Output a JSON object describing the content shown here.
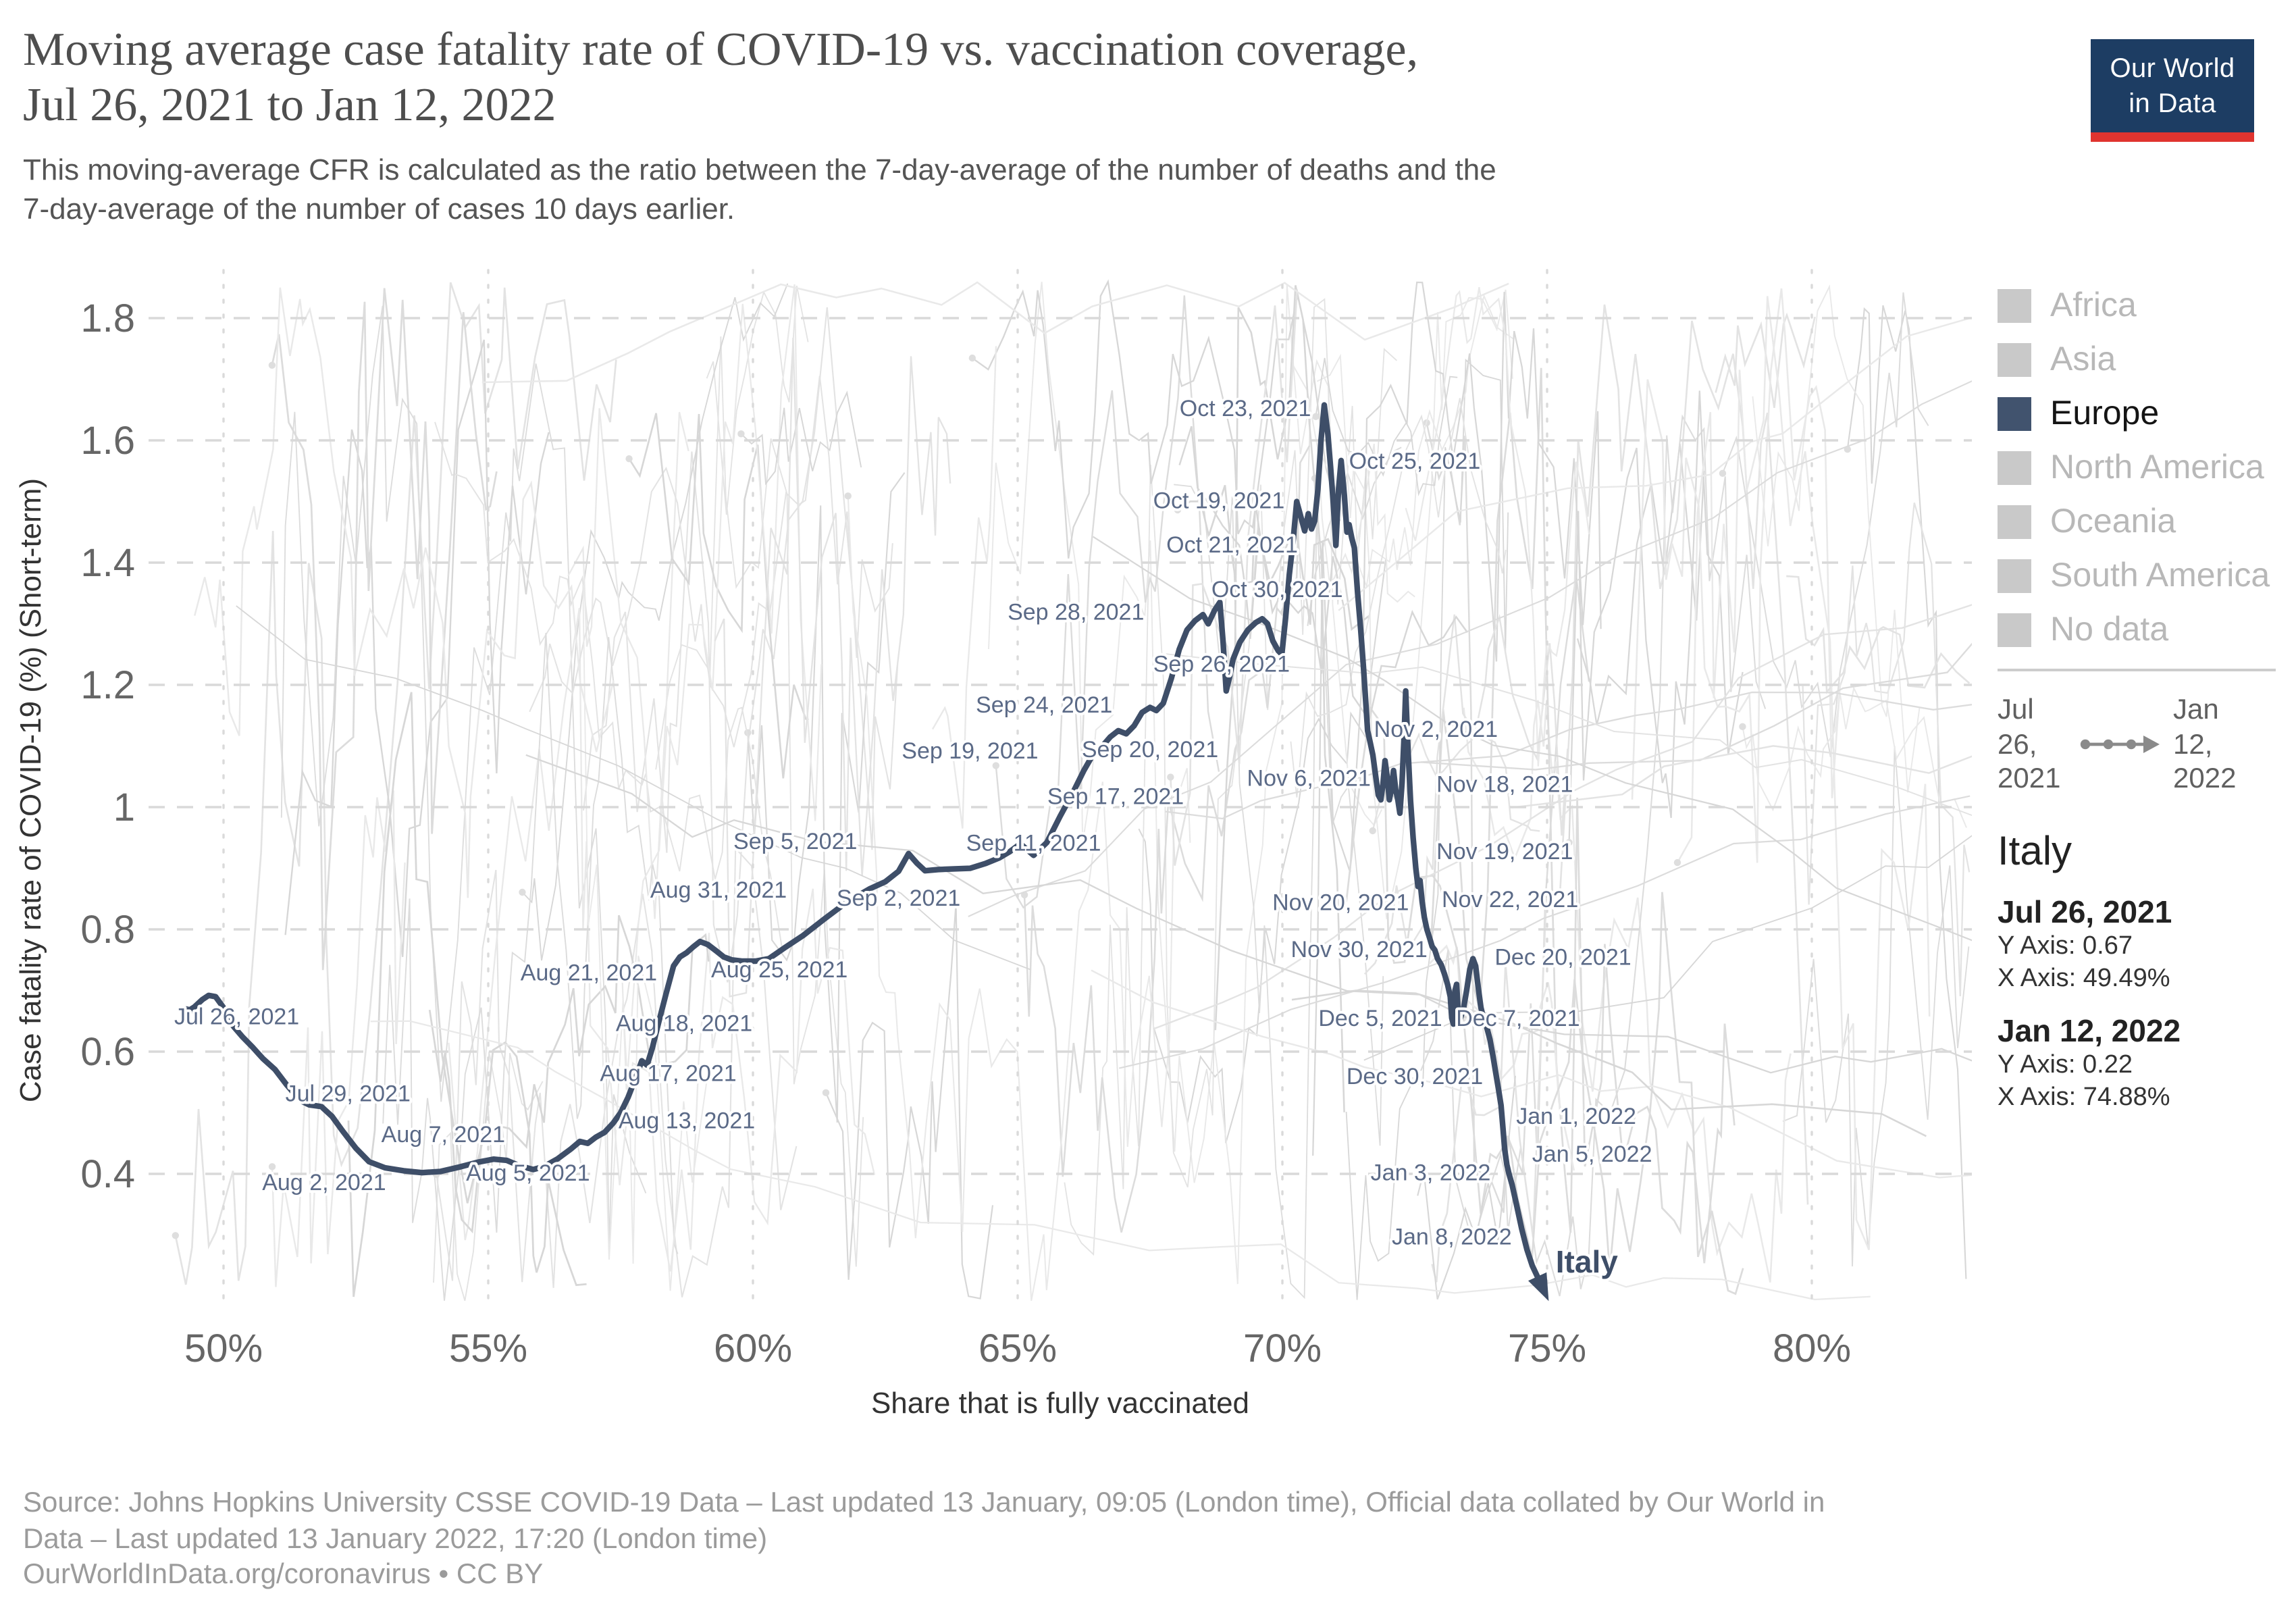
{
  "header": {
    "title_line1": "Moving average case fatality rate of COVID-19 vs. vaccination coverage,",
    "title_line2": "Jul 26, 2021 to Jan 12, 2022",
    "subtitle_line1": "This moving-average CFR is calculated as the ratio between the 7-day-average of the number of deaths and the",
    "subtitle_line2": "7-day-average of the number of cases 10 days earlier."
  },
  "logo": {
    "line1": "Our World",
    "line2": "in Data",
    "bg_color": "#1d3d63",
    "accent_color": "#e0342f"
  },
  "legend": {
    "items": [
      {
        "label": "Africa",
        "color": "#c9c9c9",
        "active": false
      },
      {
        "label": "Asia",
        "color": "#c9c9c9",
        "active": false
      },
      {
        "label": "Europe",
        "color": "#41536e",
        "active": true
      },
      {
        "label": "North America",
        "color": "#c9c9c9",
        "active": false
      },
      {
        "label": "Oceania",
        "color": "#c9c9c9",
        "active": false
      },
      {
        "label": "South America",
        "color": "#c9c9c9",
        "active": false
      },
      {
        "label": "No data",
        "color": "#c9c9c9",
        "active": false
      }
    ]
  },
  "timeline": {
    "start": "Jul 26, 2021",
    "end": "Jan 12, 2022"
  },
  "info_panel": {
    "country": "Italy",
    "entries": [
      {
        "date": "Jul 26, 2021",
        "y_label": "Y Axis: 0.67",
        "x_label": "X Axis: 49.49%"
      },
      {
        "date": "Jan 12, 2022",
        "y_label": "Y Axis: 0.22",
        "x_label": "X Axis: 74.88%"
      }
    ]
  },
  "chart_data": {
    "type": "line",
    "title": "Moving average case fatality rate of COVID-19 vs. vaccination coverage, Jul 26, 2021 to Jan 12, 2022",
    "xlabel": "Share that is fully vaccinated",
    "ylabel": "Case fatality rate of COVID-19 (%) (Short-term)",
    "xlim": [
      48.6,
      83.0
    ],
    "ylim": [
      0.18,
      1.88
    ],
    "grid": true,
    "x_ticks": {
      "values": [
        50,
        55,
        60,
        65,
        70,
        75,
        80
      ],
      "labels": [
        "50%",
        "55%",
        "60%",
        "65%",
        "70%",
        "75%",
        "80%"
      ]
    },
    "y_ticks": {
      "values": [
        0.4,
        0.6,
        0.8,
        1,
        1.2,
        1.4,
        1.6,
        1.8
      ],
      "labels": [
        "0.4",
        "0.6",
        "0.8",
        "1",
        "1.2",
        "1.4",
        "1.6",
        "1.8"
      ]
    },
    "series": [
      {
        "name": "Italy",
        "color": "#3e4e68",
        "points": [
          [
            49.3,
            0.665
          ],
          [
            49.45,
            0.673
          ],
          [
            49.6,
            0.685
          ],
          [
            49.72,
            0.692
          ],
          [
            49.85,
            0.69
          ],
          [
            50.0,
            0.672
          ],
          [
            50.15,
            0.645
          ],
          [
            50.35,
            0.625
          ],
          [
            50.55,
            0.607
          ],
          [
            50.75,
            0.588
          ],
          [
            50.97,
            0.571
          ],
          [
            51.2,
            0.545
          ],
          [
            51.45,
            0.52
          ],
          [
            51.62,
            0.513
          ],
          [
            51.85,
            0.51
          ],
          [
            52.05,
            0.494
          ],
          [
            52.25,
            0.47
          ],
          [
            52.5,
            0.442
          ],
          [
            52.75,
            0.42
          ],
          [
            53.05,
            0.41
          ],
          [
            53.4,
            0.405
          ],
          [
            53.75,
            0.402
          ],
          [
            54.1,
            0.404
          ],
          [
            54.45,
            0.411
          ],
          [
            54.8,
            0.419
          ],
          [
            55.1,
            0.424
          ],
          [
            55.35,
            0.422
          ],
          [
            55.6,
            0.413
          ],
          [
            55.85,
            0.407
          ],
          [
            56.05,
            0.412
          ],
          [
            56.3,
            0.424
          ],
          [
            56.55,
            0.44
          ],
          [
            56.73,
            0.453
          ],
          [
            56.88,
            0.45
          ],
          [
            57.03,
            0.46
          ],
          [
            57.2,
            0.468
          ],
          [
            57.36,
            0.483
          ],
          [
            57.5,
            0.5
          ],
          [
            57.64,
            0.525
          ],
          [
            57.78,
            0.556
          ],
          [
            57.9,
            0.585
          ],
          [
            58.0,
            0.578
          ],
          [
            58.1,
            0.606
          ],
          [
            58.22,
            0.648
          ],
          [
            58.36,
            0.695
          ],
          [
            58.5,
            0.74
          ],
          [
            58.62,
            0.755
          ],
          [
            58.75,
            0.762
          ],
          [
            58.88,
            0.772
          ],
          [
            59.0,
            0.78
          ],
          [
            59.15,
            0.775
          ],
          [
            59.3,
            0.765
          ],
          [
            59.45,
            0.755
          ],
          [
            59.6,
            0.75
          ],
          [
            59.8,
            0.748
          ],
          [
            60.05,
            0.748
          ],
          [
            60.3,
            0.752
          ],
          [
            60.6,
            0.77
          ],
          [
            60.95,
            0.79
          ],
          [
            61.35,
            0.817
          ],
          [
            61.78,
            0.845
          ],
          [
            62.2,
            0.866
          ],
          [
            62.5,
            0.878
          ],
          [
            62.75,
            0.895
          ],
          [
            62.94,
            0.924
          ],
          [
            63.1,
            0.908
          ],
          [
            63.25,
            0.896
          ],
          [
            63.5,
            0.898
          ],
          [
            63.8,
            0.899
          ],
          [
            64.1,
            0.9
          ],
          [
            64.4,
            0.908
          ],
          [
            64.65,
            0.917
          ],
          [
            64.85,
            0.927
          ],
          [
            65.05,
            0.94
          ],
          [
            65.3,
            0.921
          ],
          [
            65.55,
            0.942
          ],
          [
            65.8,
            0.985
          ],
          [
            66.05,
            1.025
          ],
          [
            66.25,
            1.06
          ],
          [
            66.45,
            1.09
          ],
          [
            66.6,
            1.1
          ],
          [
            66.75,
            1.115
          ],
          [
            66.9,
            1.125
          ],
          [
            67.05,
            1.12
          ],
          [
            67.2,
            1.133
          ],
          [
            67.35,
            1.155
          ],
          [
            67.5,
            1.163
          ],
          [
            67.62,
            1.158
          ],
          [
            67.75,
            1.17
          ],
          [
            67.9,
            1.21
          ],
          [
            68.05,
            1.258
          ],
          [
            68.2,
            1.29
          ],
          [
            68.35,
            1.305
          ],
          [
            68.5,
            1.315
          ],
          [
            68.6,
            1.3
          ],
          [
            68.72,
            1.322
          ],
          [
            68.82,
            1.335
          ],
          [
            68.88,
            1.27
          ],
          [
            68.94,
            1.19
          ],
          [
            69.0,
            1.212
          ],
          [
            69.07,
            1.242
          ],
          [
            69.2,
            1.27
          ],
          [
            69.35,
            1.29
          ],
          [
            69.5,
            1.302
          ],
          [
            69.62,
            1.308
          ],
          [
            69.72,
            1.3
          ],
          [
            69.82,
            1.272
          ],
          [
            69.92,
            1.256
          ],
          [
            69.99,
            1.25
          ],
          [
            70.06,
            1.31
          ],
          [
            70.13,
            1.38
          ],
          [
            70.2,
            1.432
          ],
          [
            70.27,
            1.5
          ],
          [
            70.34,
            1.478
          ],
          [
            70.42,
            1.452
          ],
          [
            70.49,
            1.48
          ],
          [
            70.55,
            1.455
          ],
          [
            70.61,
            1.468
          ],
          [
            70.67,
            1.52
          ],
          [
            70.73,
            1.6
          ],
          [
            70.79,
            1.658
          ],
          [
            70.86,
            1.61
          ],
          [
            70.91,
            1.556
          ],
          [
            70.96,
            1.5
          ],
          [
            71.01,
            1.428
          ],
          [
            71.06,
            1.52
          ],
          [
            71.11,
            1.567
          ],
          [
            71.17,
            1.51
          ],
          [
            71.22,
            1.45
          ],
          [
            71.26,
            1.462
          ],
          [
            71.31,
            1.44
          ],
          [
            71.36,
            1.424
          ],
          [
            71.42,
            1.35
          ],
          [
            71.48,
            1.29
          ],
          [
            71.53,
            1.23
          ],
          [
            71.57,
            1.18
          ],
          [
            71.61,
            1.125
          ],
          [
            71.66,
            1.105
          ],
          [
            71.71,
            1.085
          ],
          [
            71.76,
            1.052
          ],
          [
            71.81,
            1.02
          ],
          [
            71.86,
            1.012
          ],
          [
            71.9,
            1.038
          ],
          [
            71.94,
            1.076
          ],
          [
            71.98,
            1.05
          ],
          [
            72.02,
            1.012
          ],
          [
            72.06,
            1.03
          ],
          [
            72.1,
            1.06
          ],
          [
            72.14,
            1.028
          ],
          [
            72.18,
            1.012
          ],
          [
            72.22,
            0.99
          ],
          [
            72.26,
            1.04
          ],
          [
            72.3,
            1.12
          ],
          [
            72.33,
            1.19
          ],
          [
            72.37,
            1.1
          ],
          [
            72.42,
            1.01
          ],
          [
            72.47,
            0.95
          ],
          [
            72.52,
            0.9
          ],
          [
            72.56,
            0.87
          ],
          [
            72.6,
            0.88
          ],
          [
            72.64,
            0.845
          ],
          [
            72.68,
            0.82
          ],
          [
            72.73,
            0.8
          ],
          [
            72.78,
            0.786
          ],
          [
            72.83,
            0.772
          ],
          [
            72.88,
            0.766
          ],
          [
            72.93,
            0.752
          ],
          [
            73.0,
            0.742
          ],
          [
            73.06,
            0.727
          ],
          [
            73.12,
            0.71
          ],
          [
            73.17,
            0.69
          ],
          [
            73.2,
            0.655
          ],
          [
            73.23,
            0.645
          ],
          [
            73.26,
            0.7
          ],
          [
            73.29,
            0.71
          ],
          [
            73.32,
            0.668
          ],
          [
            73.36,
            0.654
          ],
          [
            73.42,
            0.67
          ],
          [
            73.48,
            0.7
          ],
          [
            73.54,
            0.735
          ],
          [
            73.6,
            0.752
          ],
          [
            73.65,
            0.74
          ],
          [
            73.7,
            0.705
          ],
          [
            73.75,
            0.672
          ],
          [
            73.8,
            0.654
          ],
          [
            73.86,
            0.64
          ],
          [
            73.92,
            0.62
          ],
          [
            73.98,
            0.592
          ],
          [
            74.03,
            0.565
          ],
          [
            74.08,
            0.54
          ],
          [
            74.13,
            0.512
          ],
          [
            74.17,
            0.47
          ],
          [
            74.2,
            0.44
          ],
          [
            74.24,
            0.415
          ],
          [
            74.28,
            0.4
          ],
          [
            74.34,
            0.382
          ],
          [
            74.42,
            0.35
          ],
          [
            74.52,
            0.31
          ],
          [
            74.62,
            0.276
          ],
          [
            74.72,
            0.25
          ],
          [
            74.8,
            0.235
          ],
          [
            74.88,
            0.22
          ]
        ]
      }
    ],
    "endpoints": {
      "start": {
        "date": "Jul 26, 2021",
        "x": 49.49,
        "y": 0.67
      },
      "end": {
        "date": "Jan 12, 2022",
        "x": 74.88,
        "y": 0.22
      }
    },
    "annotations": [
      {
        "text": "Jul 26, 2021",
        "x": 50.25,
        "y": 0.658
      },
      {
        "text": "Jul 29, 2021",
        "x": 52.35,
        "y": 0.532
      },
      {
        "text": "Aug 2, 2021",
        "x": 51.9,
        "y": 0.387
      },
      {
        "text": "Aug 5, 2021",
        "x": 55.75,
        "y": 0.402
      },
      {
        "text": "Aug 7, 2021",
        "x": 54.15,
        "y": 0.465
      },
      {
        "text": "Aug 13, 2021",
        "x": 58.75,
        "y": 0.488
      },
      {
        "text": "Aug 17, 2021",
        "x": 58.4,
        "y": 0.565
      },
      {
        "text": "Aug 18, 2021",
        "x": 58.7,
        "y": 0.647
      },
      {
        "text": "Aug 21, 2021",
        "x": 56.9,
        "y": 0.73
      },
      {
        "text": "Aug 25, 2021",
        "x": 60.5,
        "y": 0.735
      },
      {
        "text": "Aug 31, 2021",
        "x": 59.35,
        "y": 0.865
      },
      {
        "text": "Sep 2, 2021",
        "x": 62.75,
        "y": 0.852
      },
      {
        "text": "Sep 5, 2021",
        "x": 60.8,
        "y": 0.945
      },
      {
        "text": "Sep 11, 2021",
        "x": 65.3,
        "y": 0.942
      },
      {
        "text": "Sep 17, 2021",
        "x": 66.85,
        "y": 1.018
      },
      {
        "text": "Sep 19, 2021",
        "x": 64.1,
        "y": 1.093
      },
      {
        "text": "Sep 20, 2021",
        "x": 67.5,
        "y": 1.095
      },
      {
        "text": "Sep 24, 2021",
        "x": 65.5,
        "y": 1.168
      },
      {
        "text": "Sep 26, 2021",
        "x": 68.85,
        "y": 1.235
      },
      {
        "text": "Sep 28, 2021",
        "x": 66.1,
        "y": 1.32
      },
      {
        "text": "Oct 19, 2021",
        "x": 68.8,
        "y": 1.502
      },
      {
        "text": "Oct 21, 2021",
        "x": 69.05,
        "y": 1.43
      },
      {
        "text": "Oct 23, 2021",
        "x": 69.3,
        "y": 1.653
      },
      {
        "text": "Oct 25, 2021",
        "x": 72.5,
        "y": 1.567
      },
      {
        "text": "Oct 30, 2021",
        "x": 69.9,
        "y": 1.357
      },
      {
        "text": "Nov 2, 2021",
        "x": 72.9,
        "y": 1.128
      },
      {
        "text": "Nov 6, 2021",
        "x": 70.5,
        "y": 1.048
      },
      {
        "text": "Nov 18, 2021",
        "x": 74.2,
        "y": 1.038
      },
      {
        "text": "Nov 19, 2021",
        "x": 74.2,
        "y": 0.928
      },
      {
        "text": "Nov 20, 2021",
        "x": 71.1,
        "y": 0.845
      },
      {
        "text": "Nov 22, 2021",
        "x": 74.3,
        "y": 0.85
      },
      {
        "text": "Nov 30, 2021",
        "x": 71.45,
        "y": 0.768
      },
      {
        "text": "Dec 5, 2021",
        "x": 71.85,
        "y": 0.655
      },
      {
        "text": "Dec 7, 2021",
        "x": 74.45,
        "y": 0.655
      },
      {
        "text": "Dec 20, 2021",
        "x": 75.3,
        "y": 0.755
      },
      {
        "text": "Dec 30, 2021",
        "x": 72.5,
        "y": 0.56
      },
      {
        "text": "Jan 1, 2022",
        "x": 75.55,
        "y": 0.495
      },
      {
        "text": "Jan 3, 2022",
        "x": 72.8,
        "y": 0.403
      },
      {
        "text": "Jan 5, 2022",
        "x": 75.85,
        "y": 0.433
      },
      {
        "text": "Jan 8, 2022",
        "x": 73.2,
        "y": 0.298
      },
      {
        "text": "Italy",
        "x": 75.75,
        "y": 0.252,
        "bold": true
      }
    ]
  },
  "footer": {
    "lines": [
      "Source: Johns Hopkins University CSSE COVID-19 Data – Last updated 13 January, 09:05 (London time), Official data collated by Our World in",
      "Data – Last updated 13 January 2022, 17:20 (London time)",
      "OurWorldInData.org/coronavirus • CC BY"
    ]
  }
}
